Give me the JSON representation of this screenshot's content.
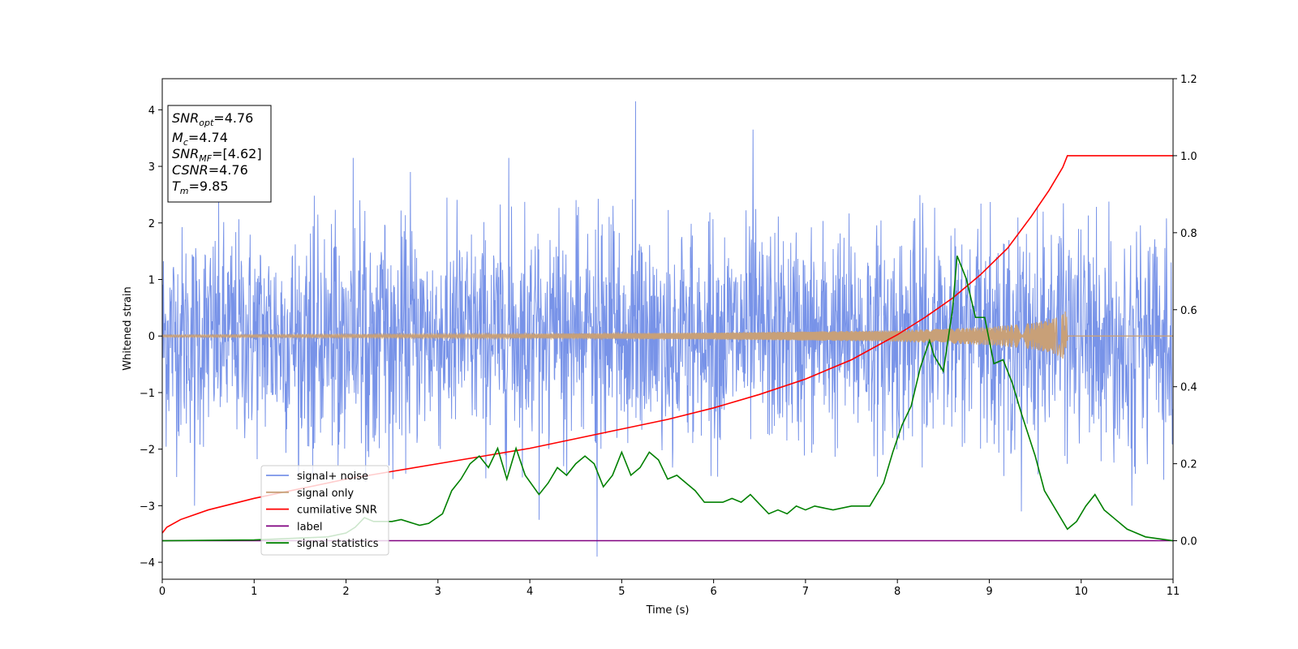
{
  "chart_data": {
    "type": "line",
    "xlabel": "Time (s)",
    "ylabel": "Whitened strain",
    "xlim": [
      0,
      11
    ],
    "ylim_left": [
      -4.3,
      4.55
    ],
    "ylim_right": [
      -0.1,
      1.2
    ],
    "xticks": [
      "0",
      "1",
      "2",
      "3",
      "4",
      "5",
      "6",
      "7",
      "8",
      "9",
      "10",
      "11"
    ],
    "yticks_left": [
      "4",
      "3",
      "2",
      "1",
      "0",
      "−1",
      "−2",
      "−3",
      "−4"
    ],
    "yticks_right": [
      "1.2",
      "1.0",
      "0.8",
      "0.6",
      "0.4",
      "0.2",
      "0.0"
    ],
    "grid": false,
    "legend_position": "lower-left",
    "info_box": [
      {
        "symbol": "SNR",
        "sub": "opt",
        "text": "=4.76"
      },
      {
        "symbol": "M",
        "sub": "c",
        "text": "=4.74"
      },
      {
        "symbol": "SNR",
        "sub": "MF",
        "text": "=[4.62]"
      },
      {
        "symbol": "CSNR",
        "sub": "",
        "text": "=4.76"
      },
      {
        "symbol": "T",
        "sub": "m",
        "text": "=9.85"
      }
    ],
    "series": [
      {
        "name": "signal+ noise",
        "color": "#7893e8",
        "axis": "left",
        "description_values": "dense noise trace, approx range",
        "x_range": [
          0,
          11
        ],
        "typical_envelope": [
          -1.6,
          1.6
        ],
        "peaks": [
          {
            "x": 0.35,
            "y": -3.0
          },
          {
            "x": 2.08,
            "y": 3.15
          },
          {
            "x": 2.7,
            "y": 2.9
          },
          {
            "x": 3.77,
            "y": 3.15
          },
          {
            "x": 4.1,
            "y": -3.25
          },
          {
            "x": 4.73,
            "y": -3.9
          },
          {
            "x": 5.15,
            "y": 4.15
          },
          {
            "x": 6.43,
            "y": 3.65
          },
          {
            "x": 9.35,
            "y": -3.1
          },
          {
            "x": 10.55,
            "y": -3.0
          }
        ]
      },
      {
        "name": "signal only",
        "color": "#c8a078",
        "axis": "left",
        "envelope": [
          {
            "x": 0,
            "a": 0.02
          },
          {
            "x": 2,
            "a": 0.03
          },
          {
            "x": 4,
            "a": 0.04
          },
          {
            "x": 6,
            "a": 0.06
          },
          {
            "x": 8,
            "a": 0.1
          },
          {
            "x": 9,
            "a": 0.16
          },
          {
            "x": 9.5,
            "a": 0.24
          },
          {
            "x": 9.75,
            "a": 0.34
          },
          {
            "x": 9.84,
            "a": 0.45
          },
          {
            "x": 9.85,
            "a": 0
          },
          {
            "x": 11,
            "a": 0
          }
        ]
      },
      {
        "name": "cumilative SNR",
        "color": "#ff0000",
        "axis": "right",
        "x": [
          0,
          0.05,
          0.2,
          0.5,
          1,
          1.5,
          2,
          2.5,
          3,
          3.5,
          4,
          4.5,
          5,
          5.5,
          6,
          6.5,
          7,
          7.5,
          8,
          8.3,
          8.6,
          8.9,
          9.2,
          9.45,
          9.65,
          9.8,
          9.85,
          11
        ],
        "values": [
          0.02,
          0.035,
          0.055,
          0.08,
          0.11,
          0.135,
          0.16,
          0.18,
          0.2,
          0.22,
          0.24,
          0.265,
          0.29,
          0.315,
          0.345,
          0.38,
          0.42,
          0.47,
          0.535,
          0.58,
          0.63,
          0.69,
          0.76,
          0.84,
          0.91,
          0.97,
          1.0,
          1.0
        ]
      },
      {
        "name": "label",
        "color": "#800080",
        "axis": "right",
        "x": [
          0,
          11
        ],
        "values": [
          0.0,
          0.0
        ]
      },
      {
        "name": "signal statistics",
        "color": "#008000",
        "axis": "right",
        "x": [
          0,
          1.0,
          1.8,
          2.0,
          2.1,
          2.2,
          2.3,
          2.5,
          2.6,
          2.8,
          2.9,
          3.05,
          3.15,
          3.25,
          3.35,
          3.45,
          3.55,
          3.65,
          3.75,
          3.85,
          3.95,
          4.1,
          4.2,
          4.3,
          4.4,
          4.5,
          4.6,
          4.7,
          4.8,
          4.9,
          5.0,
          5.1,
          5.2,
          5.3,
          5.4,
          5.5,
          5.6,
          5.7,
          5.8,
          5.9,
          6.1,
          6.2,
          6.3,
          6.4,
          6.6,
          6.7,
          6.8,
          6.9,
          7.0,
          7.1,
          7.3,
          7.5,
          7.7,
          7.85,
          7.95,
          8.05,
          8.15,
          8.25,
          8.35,
          8.4,
          8.5,
          8.6,
          8.65,
          8.75,
          8.85,
          8.95,
          9.05,
          9.15,
          9.25,
          9.35,
          9.5,
          9.6,
          9.75,
          9.85,
          9.95,
          10.05,
          10.15,
          10.25,
          10.35,
          10.5,
          10.7,
          11
        ],
        "values": [
          0.0,
          0.002,
          0.01,
          0.02,
          0.035,
          0.06,
          0.05,
          0.05,
          0.055,
          0.04,
          0.045,
          0.07,
          0.13,
          0.16,
          0.2,
          0.22,
          0.19,
          0.24,
          0.16,
          0.24,
          0.17,
          0.12,
          0.15,
          0.19,
          0.17,
          0.2,
          0.22,
          0.2,
          0.14,
          0.17,
          0.23,
          0.17,
          0.19,
          0.23,
          0.21,
          0.16,
          0.17,
          0.15,
          0.13,
          0.1,
          0.1,
          0.11,
          0.1,
          0.12,
          0.07,
          0.08,
          0.07,
          0.09,
          0.08,
          0.09,
          0.08,
          0.09,
          0.09,
          0.15,
          0.23,
          0.3,
          0.35,
          0.45,
          0.52,
          0.48,
          0.44,
          0.6,
          0.74,
          0.68,
          0.58,
          0.58,
          0.46,
          0.47,
          0.41,
          0.33,
          0.22,
          0.13,
          0.07,
          0.03,
          0.05,
          0.09,
          0.12,
          0.08,
          0.06,
          0.03,
          0.01,
          0.0
        ]
      }
    ]
  }
}
